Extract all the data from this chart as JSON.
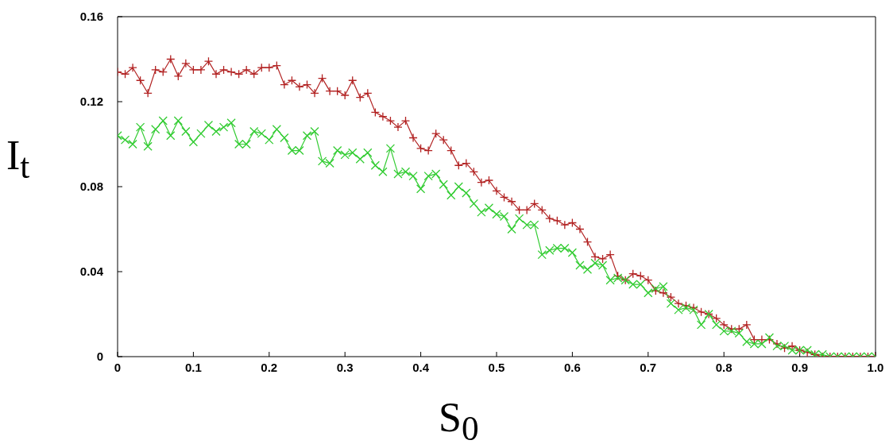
{
  "chart_data": {
    "type": "line",
    "xlabel": "S$_{0}$",
    "ylabel": "I$_{t}$",
    "x": [
      0,
      0.01,
      0.02,
      0.03,
      0.04,
      0.05,
      0.06,
      0.07,
      0.08,
      0.09,
      0.1,
      0.11,
      0.12,
      0.13,
      0.14,
      0.15,
      0.16,
      0.17,
      0.18,
      0.19,
      0.2,
      0.21,
      0.22,
      0.23,
      0.24,
      0.25,
      0.26,
      0.27,
      0.28,
      0.29,
      0.3,
      0.31,
      0.32,
      0.33,
      0.34,
      0.35,
      0.36,
      0.37,
      0.38,
      0.39,
      0.4,
      0.41,
      0.42,
      0.43,
      0.44,
      0.45,
      0.46,
      0.47,
      0.48,
      0.49,
      0.5,
      0.51,
      0.52,
      0.53,
      0.54,
      0.55,
      0.56,
      0.57,
      0.58,
      0.59,
      0.6,
      0.61,
      0.62,
      0.63,
      0.64,
      0.65,
      0.66,
      0.67,
      0.68,
      0.69,
      0.7,
      0.71,
      0.72,
      0.73,
      0.74,
      0.75,
      0.76,
      0.77,
      0.78,
      0.79,
      0.8,
      0.81,
      0.82,
      0.83,
      0.84,
      0.85,
      0.86,
      0.87,
      0.88,
      0.89,
      0.9,
      0.91,
      0.92,
      0.93,
      0.94,
      0.95,
      0.96,
      0.97,
      0.98,
      0.99,
      1
    ],
    "series": [
      {
        "color": "#b22222",
        "values": [
          0.134,
          0.133,
          0.136,
          0.13,
          0.124,
          0.135,
          0.134,
          0.14,
          0.132,
          0.138,
          0.135,
          0.135,
          0.139,
          0.133,
          0.135,
          0.134,
          0.133,
          0.135,
          0.133,
          0.136,
          0.136,
          0.137,
          0.128,
          0.13,
          0.127,
          0.128,
          0.124,
          0.131,
          0.125,
          0.125,
          0.123,
          0.13,
          0.122,
          0.124,
          0.115,
          0.113,
          0.111,
          0.108,
          0.111,
          0.103,
          0.098,
          0.097,
          0.105,
          0.102,
          0.097,
          0.09,
          0.091,
          0.087,
          0.082,
          0.083,
          0.078,
          0.075,
          0.073,
          0.069,
          0.069,
          0.072,
          0.069,
          0.065,
          0.064,
          0.062,
          0.063,
          0.06,
          0.054,
          0.047,
          0.046,
          0.048,
          0.038,
          0.036,
          0.039,
          0.038,
          0.036,
          0.031,
          0.03,
          0.028,
          0.025,
          0.024,
          0.023,
          0.021,
          0.02,
          0.018,
          0.015,
          0.013,
          0.013,
          0.015,
          0.008,
          0.008,
          0.008,
          0.006,
          0.004,
          0.005,
          0.003,
          0.002,
          0.001,
          0,
          0,
          0,
          0,
          0,
          0,
          0,
          0
        ]
      },
      {
        "color": "#33cc33",
        "values": [
          0.104,
          0.102,
          0.1,
          0.108,
          0.099,
          0.107,
          0.111,
          0.104,
          0.111,
          0.106,
          0.101,
          0.105,
          0.109,
          0.106,
          0.108,
          0.11,
          0.1,
          0.1,
          0.106,
          0.105,
          0.102,
          0.107,
          0.103,
          0.097,
          0.097,
          0.104,
          0.106,
          0.092,
          0.091,
          0.097,
          0.095,
          0.096,
          0.093,
          0.096,
          0.09,
          0.087,
          0.098,
          0.086,
          0.087,
          0.085,
          0.079,
          0.085,
          0.086,
          0.081,
          0.076,
          0.08,
          0.077,
          0.072,
          0.068,
          0.07,
          0.067,
          0.066,
          0.06,
          0.065,
          0.062,
          0.062,
          0.048,
          0.05,
          0.051,
          0.051,
          0.049,
          0.043,
          0.041,
          0.044,
          0.043,
          0.036,
          0.037,
          0.036,
          0.034,
          0.034,
          0.03,
          0.032,
          0.033,
          0.025,
          0.022,
          0.023,
          0.022,
          0.015,
          0.02,
          0.015,
          0.012,
          0.012,
          0.011,
          0.007,
          0.006,
          0.006,
          0.009,
          0.005,
          0.005,
          0.003,
          0.003,
          0.003,
          0.001,
          0.001,
          0,
          0,
          0,
          0,
          0,
          0,
          0
        ]
      }
    ],
    "xlim": [
      0,
      1
    ],
    "xticks": [
      0,
      0.1,
      0.2,
      0.3,
      0.4,
      0.5,
      0.6,
      0.7,
      0.8,
      0.9,
      {
        "value": 1,
        "label": "1.0"
      }
    ],
    "ylim": [
      0,
      0.16
    ],
    "yticks": [
      0,
      0.04,
      0.08,
      0.12,
      0.16
    ],
    "grid": false,
    "legend": false,
    "marker": "cross",
    "line_style": "solid"
  }
}
